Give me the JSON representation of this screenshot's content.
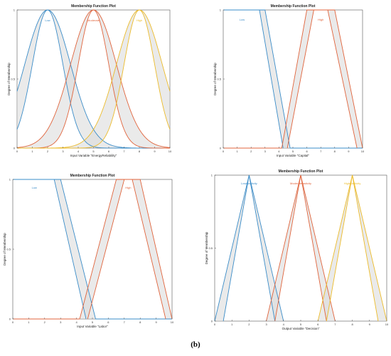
{
  "caption": "(b)",
  "colors": {
    "blue": "#3a8cc8",
    "orange": "#e0643c",
    "yellow": "#ecbb2a",
    "band": "#d9d9d9"
  },
  "chart_data": [
    {
      "type": "line",
      "title": "Membership Function Plot",
      "xlabel": "Input Variable \"EnergyReliability\"",
      "ylabel": "Degree of Membership",
      "xlim": [
        0,
        10
      ],
      "ylim": [
        0,
        1
      ],
      "xticks": [
        "0",
        "1",
        "2",
        "3",
        "4",
        "5",
        "6",
        "7",
        "8",
        "9",
        "10"
      ],
      "yticks": [
        "0",
        "0.5",
        "1"
      ],
      "grid": false,
      "series": [
        {
          "name": "Low",
          "color": "#3a8cc8",
          "shape": "gauss",
          "center": 2,
          "sigma_upper": 1.5,
          "sigma_lower": 1.0
        },
        {
          "name": "Moderate",
          "color": "#e0643c",
          "shape": "gauss",
          "center": 5,
          "sigma_upper": 1.5,
          "sigma_lower": 1.0
        },
        {
          "name": "High",
          "color": "#ecbb2a",
          "shape": "gauss",
          "center": 8,
          "sigma_upper": 1.5,
          "sigma_lower": 1.0
        }
      ]
    },
    {
      "type": "line",
      "title": "Membership Function Plot",
      "xlabel": "Input Variable \"Capital\"",
      "ylabel": "Degree of Membership",
      "xlim": [
        0,
        10
      ],
      "ylim": [
        0,
        1
      ],
      "xticks": [
        "0",
        "1",
        "2",
        "3",
        "4",
        "5",
        "6",
        "7",
        "8",
        "9",
        "10"
      ],
      "yticks": [
        "0",
        "0.5",
        "1"
      ],
      "grid": false,
      "series": [
        {
          "name": "Low",
          "color": "#3a8cc8",
          "shape": "trap",
          "upper": [
            [
              0,
              1
            ],
            [
              3,
              1
            ],
            [
              4.8,
              0
            ]
          ],
          "lower": [
            [
              0,
              1
            ],
            [
              2.6,
              1
            ],
            [
              4.3,
              0
            ]
          ]
        },
        {
          "name": "High",
          "color": "#e0643c",
          "shape": "trap",
          "upper": [
            [
              4.2,
              0
            ],
            [
              6,
              1
            ],
            [
              8,
              1
            ],
            [
              10,
              0
            ]
          ],
          "lower": [
            [
              4.6,
              0
            ],
            [
              6.5,
              1
            ],
            [
              7.5,
              1
            ],
            [
              9.6,
              0
            ]
          ]
        }
      ]
    },
    {
      "type": "line",
      "title": "Membership Function Plot",
      "xlabel": "Input Variable \"Labor\"",
      "ylabel": "Degree of Membership",
      "xlim": [
        0,
        10
      ],
      "ylim": [
        0,
        1
      ],
      "xticks": [
        "0",
        "1",
        "2",
        "3",
        "4",
        "5",
        "6",
        "7",
        "8",
        "9",
        "10"
      ],
      "yticks": [
        "0",
        "0.5",
        "1"
      ],
      "grid": false,
      "series": [
        {
          "name": "Low",
          "color": "#3a8cc8",
          "shape": "trap",
          "upper": [
            [
              0,
              1
            ],
            [
              3,
              1
            ],
            [
              5.2,
              0
            ]
          ],
          "lower": [
            [
              0,
              1
            ],
            [
              2.6,
              1
            ],
            [
              4.6,
              0
            ]
          ]
        },
        {
          "name": "High",
          "color": "#e0643c",
          "shape": "trap",
          "upper": [
            [
              4.2,
              0
            ],
            [
              6.5,
              1
            ],
            [
              8,
              1
            ],
            [
              10,
              0
            ]
          ],
          "lower": [
            [
              4.7,
              0
            ],
            [
              7,
              1
            ],
            [
              7.5,
              1
            ],
            [
              9.6,
              0
            ]
          ]
        }
      ]
    },
    {
      "type": "line",
      "title": "Membership Function Plot",
      "xlabel": "Output Variable \"Decision\"",
      "ylabel": "Degree of Membership",
      "xlim": [
        0,
        10
      ],
      "ylim": [
        0,
        1
      ],
      "xticks": [
        "0",
        "1",
        "2",
        "3",
        "4",
        "5",
        "6",
        "7",
        "8",
        "9",
        "10"
      ],
      "yticks": [
        "0",
        "0.5",
        "1"
      ],
      "grid": false,
      "series": [
        {
          "name": "Lowelasticity",
          "color": "#3a8cc8",
          "shape": "tri",
          "upper": [
            [
              0,
              0
            ],
            [
              2,
              1
            ],
            [
              4,
              0
            ]
          ],
          "lower": [
            [
              0.5,
              0
            ],
            [
              2,
              1
            ],
            [
              3.5,
              0
            ]
          ]
        },
        {
          "name": "Moderatelasticity",
          "color": "#e0643c",
          "shape": "tri",
          "upper": [
            [
              3,
              0
            ],
            [
              5,
              1
            ],
            [
              7,
              0
            ]
          ],
          "lower": [
            [
              3.5,
              0
            ],
            [
              5,
              1
            ],
            [
              6.5,
              0
            ]
          ]
        },
        {
          "name": "Highelasticity",
          "color": "#ecbb2a",
          "shape": "tri",
          "upper": [
            [
              6,
              0
            ],
            [
              8,
              1
            ],
            [
              10,
              0
            ]
          ],
          "lower": [
            [
              6.5,
              0
            ],
            [
              8,
              1
            ],
            [
              9.5,
              0
            ]
          ]
        }
      ]
    }
  ]
}
